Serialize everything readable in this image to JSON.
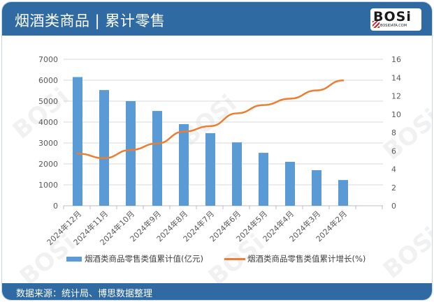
{
  "header": {
    "title": "烟酒类商品 | 累计零售",
    "logo_text": "BOSi",
    "logo_subtext": "BOSIDATA.COM"
  },
  "footer": {
    "source": "数据来源：统计局、博思数据整理"
  },
  "legend": {
    "bar_label": "烟酒类商品零售类值累计值(亿元)",
    "line_label": "烟酒类商品零售类值累计增长(%)"
  },
  "axes": {
    "left_ticks": [
      "0",
      "1000",
      "2000",
      "3000",
      "4000",
      "5000",
      "6000",
      "7000"
    ],
    "right_ticks": [
      "0",
      "2",
      "4",
      "6",
      "8",
      "10",
      "12",
      "14",
      "16"
    ]
  },
  "colors": {
    "header": "#2f6aa3",
    "bar": "#5b9bd5",
    "line": "#ed7d31"
  },
  "chart_data": {
    "type": "bar",
    "title": "烟酒类商品 | 累计零售",
    "categories": [
      "2024年12月",
      "2024年11月",
      "2024年10月",
      "2024年9月",
      "2024年8月",
      "2024年7月",
      "2024年6月",
      "2024年5月",
      "2024年4月",
      "2024年3月",
      "2024年2月"
    ],
    "series": [
      {
        "name": "烟酒类商品零售类值累计值(亿元)",
        "type": "bar",
        "axis": "left",
        "values": [
          6150,
          5530,
          5000,
          4530,
          3900,
          3470,
          3030,
          2530,
          2100,
          1700,
          1230
        ]
      },
      {
        "name": "烟酒类商品零售类值累计增长(%)",
        "type": "line",
        "axis": "right",
        "values": [
          5.7,
          5.2,
          6.1,
          6.8,
          8.1,
          8.7,
          10.1,
          11.0,
          11.7,
          12.6,
          13.7
        ]
      }
    ],
    "xlabel": "",
    "ylabel": "",
    "ylim": [
      0,
      7000
    ],
    "y2lim": [
      0,
      16
    ],
    "grid": true,
    "legend_position": "bottom"
  }
}
